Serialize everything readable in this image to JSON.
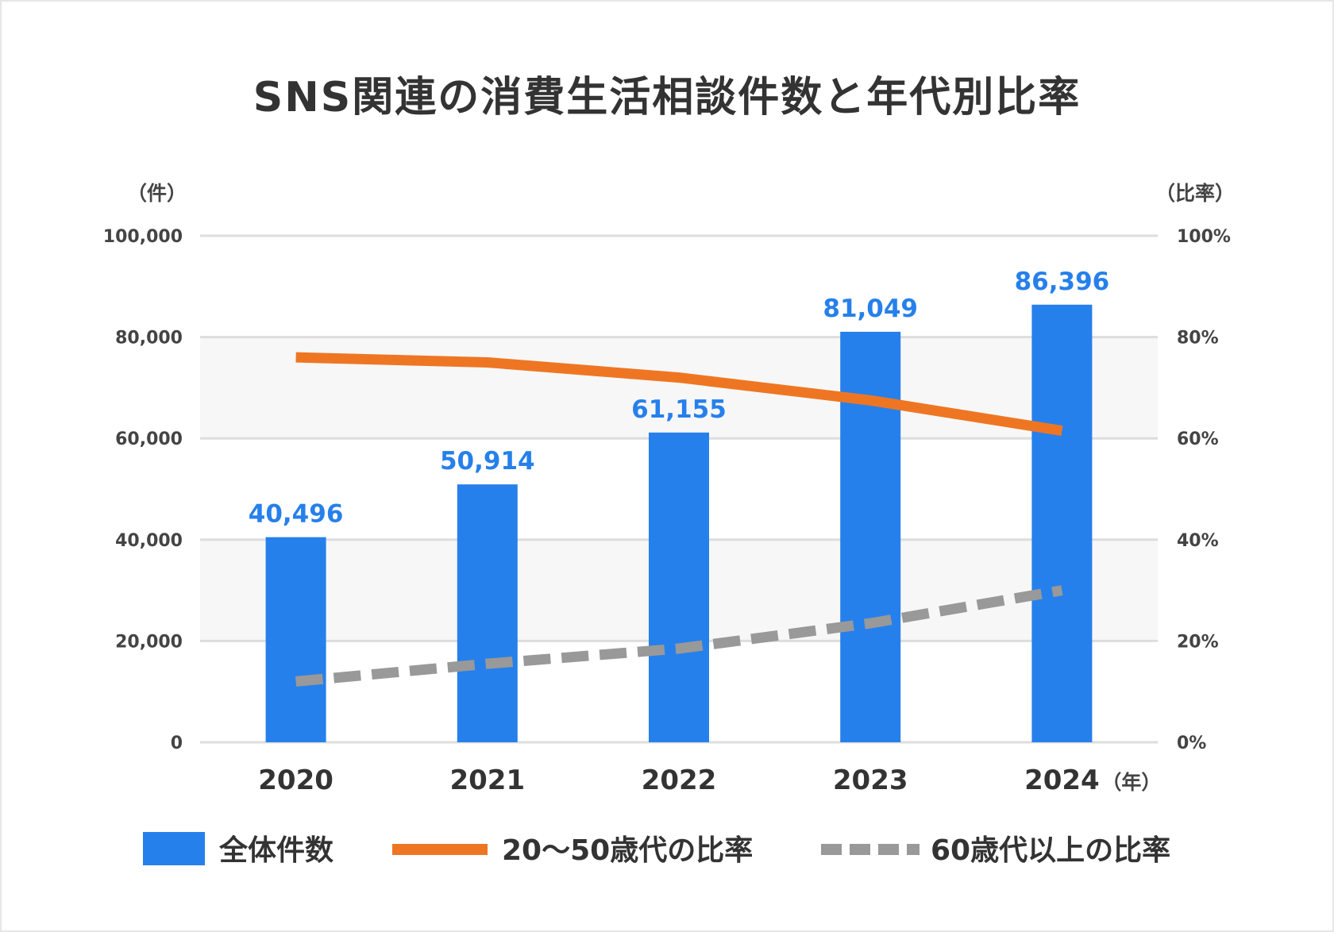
{
  "colors": {
    "bar": "#2680EB",
    "line1": "#EE7623",
    "line2": "#999999",
    "grid": "#dddddd",
    "band": "#f7f7f7"
  },
  "chart_data": {
    "type": "bar",
    "title": "SNS関連の消費生活相談件数と年代別比率",
    "y_unit_left": "（件）",
    "y_unit_right": "（比率）",
    "x_unit": "（年）",
    "categories": [
      "2020",
      "2021",
      "2022",
      "2023",
      "2024"
    ],
    "ylim": [
      0,
      100000
    ],
    "y2lim": [
      0,
      100
    ],
    "yticks": [
      "0",
      "20,000",
      "40,000",
      "60,000",
      "80,000",
      "100,000"
    ],
    "y2ticks": [
      "0%",
      "20%",
      "40%",
      "60%",
      "80%",
      "100%"
    ],
    "grid": true,
    "legend_position": "bottom",
    "series": [
      {
        "name": "全体件数",
        "type": "bar",
        "axis": "left",
        "values": [
          40496,
          50914,
          61155,
          81049,
          86396
        ],
        "labels": [
          "40,496",
          "50,914",
          "61,155",
          "81,049",
          "86,396"
        ]
      },
      {
        "name": "20〜50歳代の比率",
        "type": "line",
        "axis": "right",
        "values": [
          76,
          75,
          72,
          67.5,
          61.5
        ]
      },
      {
        "name": "60歳代以上の比率",
        "type": "line",
        "style": "dashed",
        "axis": "right",
        "values": [
          12,
          15.5,
          18.5,
          23.5,
          30
        ]
      }
    ]
  }
}
